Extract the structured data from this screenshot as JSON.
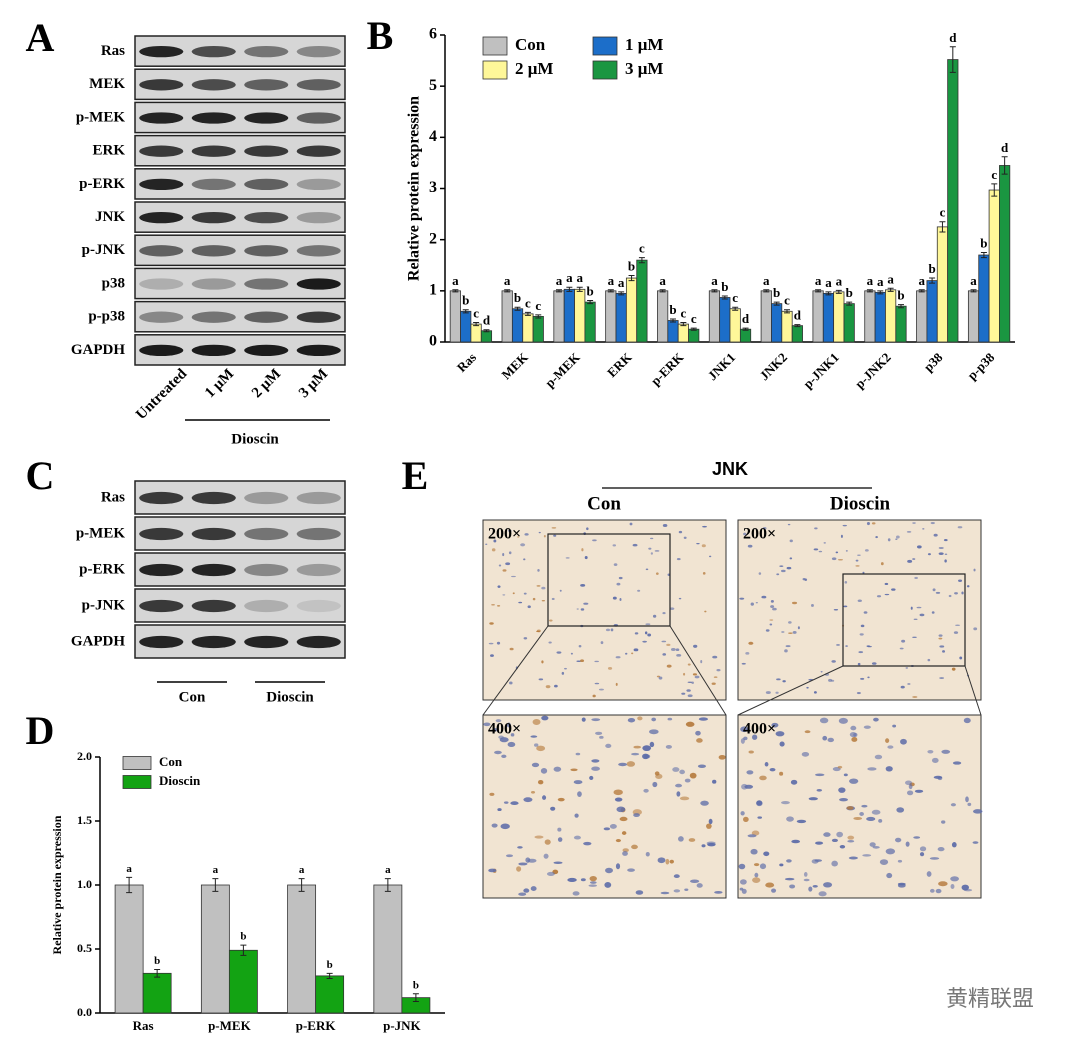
{
  "panel_labels": [
    "A",
    "B",
    "C",
    "D",
    "E"
  ],
  "blot_a": {
    "rows": [
      "Ras",
      "MEK",
      "p-MEK",
      "ERK",
      "p-ERK",
      "JNK",
      "p-JNK",
      "p38",
      "p-p38",
      "GAPDH"
    ],
    "lanes": [
      "Untreated",
      "1 μM",
      "2 μM",
      "3 μM"
    ],
    "group": "Dioscin"
  },
  "blot_c": {
    "rows": [
      "Ras",
      "p-MEK",
      "p-ERK",
      "p-JNK",
      "GAPDH"
    ],
    "groups": [
      "Con",
      "Dioscin"
    ]
  },
  "ihc": {
    "title": "JNK",
    "groups": [
      "Con",
      "Dioscin"
    ],
    "magnifications": [
      "200×",
      "400×"
    ]
  },
  "watermark": "黄精联盟",
  "chart_data": [
    {
      "type": "bar",
      "y_label": "Relative protein expression",
      "categories": [
        "Ras",
        "MEK",
        "p-MEK",
        "ERK",
        "p-ERK",
        "JNK1",
        "JNK2",
        "p-JNK1",
        "p-JNK2",
        "p38",
        "p-p38"
      ],
      "series": [
        {
          "name": "Con",
          "color": "#c0c0c0",
          "values": [
            1,
            1,
            1,
            1,
            1,
            1,
            1,
            1,
            1,
            1,
            1
          ],
          "errors": [
            0.02,
            0.02,
            0.02,
            0.02,
            0.02,
            0.02,
            0.02,
            0.02,
            0.02,
            0.02,
            0.02
          ],
          "letters": [
            "a",
            "a",
            "a",
            "a",
            "a",
            "a",
            "a",
            "a",
            "a",
            "a",
            "a"
          ]
        },
        {
          "name": "1 μM",
          "color": "#1c6ec9",
          "values": [
            0.6,
            0.65,
            1.03,
            0.95,
            0.42,
            0.87,
            0.75,
            0.95,
            0.97,
            1.2,
            1.7
          ],
          "errors": [
            0.03,
            0.03,
            0.04,
            0.03,
            0.03,
            0.03,
            0.03,
            0.03,
            0.03,
            0.05,
            0.05
          ],
          "letters": [
            "b",
            "b",
            "a",
            "a",
            "b",
            "b",
            "b",
            "a",
            "a",
            "b",
            "b"
          ]
        },
        {
          "name": "2 μM",
          "color": "#fff799",
          "values": [
            0.35,
            0.55,
            1.03,
            1.25,
            0.35,
            0.65,
            0.6,
            0.98,
            1.02,
            2.25,
            2.97
          ],
          "errors": [
            0.03,
            0.03,
            0.04,
            0.05,
            0.03,
            0.03,
            0.03,
            0.03,
            0.03,
            0.1,
            0.12
          ],
          "letters": [
            "c",
            "c",
            "a",
            "b",
            "c",
            "c",
            "c",
            "a",
            "a",
            "c",
            "c"
          ]
        },
        {
          "name": "3 μM",
          "color": "#1a9641",
          "values": [
            0.22,
            0.5,
            0.78,
            1.6,
            0.25,
            0.25,
            0.32,
            0.75,
            0.7,
            5.52,
            3.45
          ],
          "errors": [
            0.02,
            0.03,
            0.03,
            0.05,
            0.02,
            0.02,
            0.02,
            0.03,
            0.03,
            0.25,
            0.17
          ],
          "letters": [
            "d",
            "c",
            "b",
            "c",
            "c",
            "d",
            "d",
            "b",
            "b",
            "d",
            "d"
          ]
        }
      ],
      "ylim": [
        0,
        6
      ],
      "yticks": [
        0,
        1,
        2,
        3,
        4,
        5,
        6
      ]
    },
    {
      "type": "bar",
      "y_label": "Relative protein expression",
      "categories": [
        "Ras",
        "p-MEK",
        "p-ERK",
        "p-JNK"
      ],
      "series": [
        {
          "name": "Con",
          "color": "#c0c0c0",
          "values": [
            1,
            1,
            1,
            1
          ],
          "errors": [
            0.06,
            0.05,
            0.05,
            0.05
          ],
          "letters": [
            "a",
            "a",
            "a",
            "a"
          ]
        },
        {
          "name": "Dioscin",
          "color": "#13a313",
          "values": [
            0.31,
            0.49,
            0.29,
            0.12
          ],
          "errors": [
            0.03,
            0.04,
            0.02,
            0.03
          ],
          "letters": [
            "b",
            "b",
            "b",
            "b"
          ]
        }
      ],
      "ylim": [
        0,
        2
      ],
      "yticks": [
        {
          "value": 0,
          "label": "0.0"
        },
        0.5,
        {
          "value": 1,
          "label": "1.0"
        },
        1.5,
        {
          "value": 2,
          "label": "2.0"
        }
      ]
    }
  ]
}
